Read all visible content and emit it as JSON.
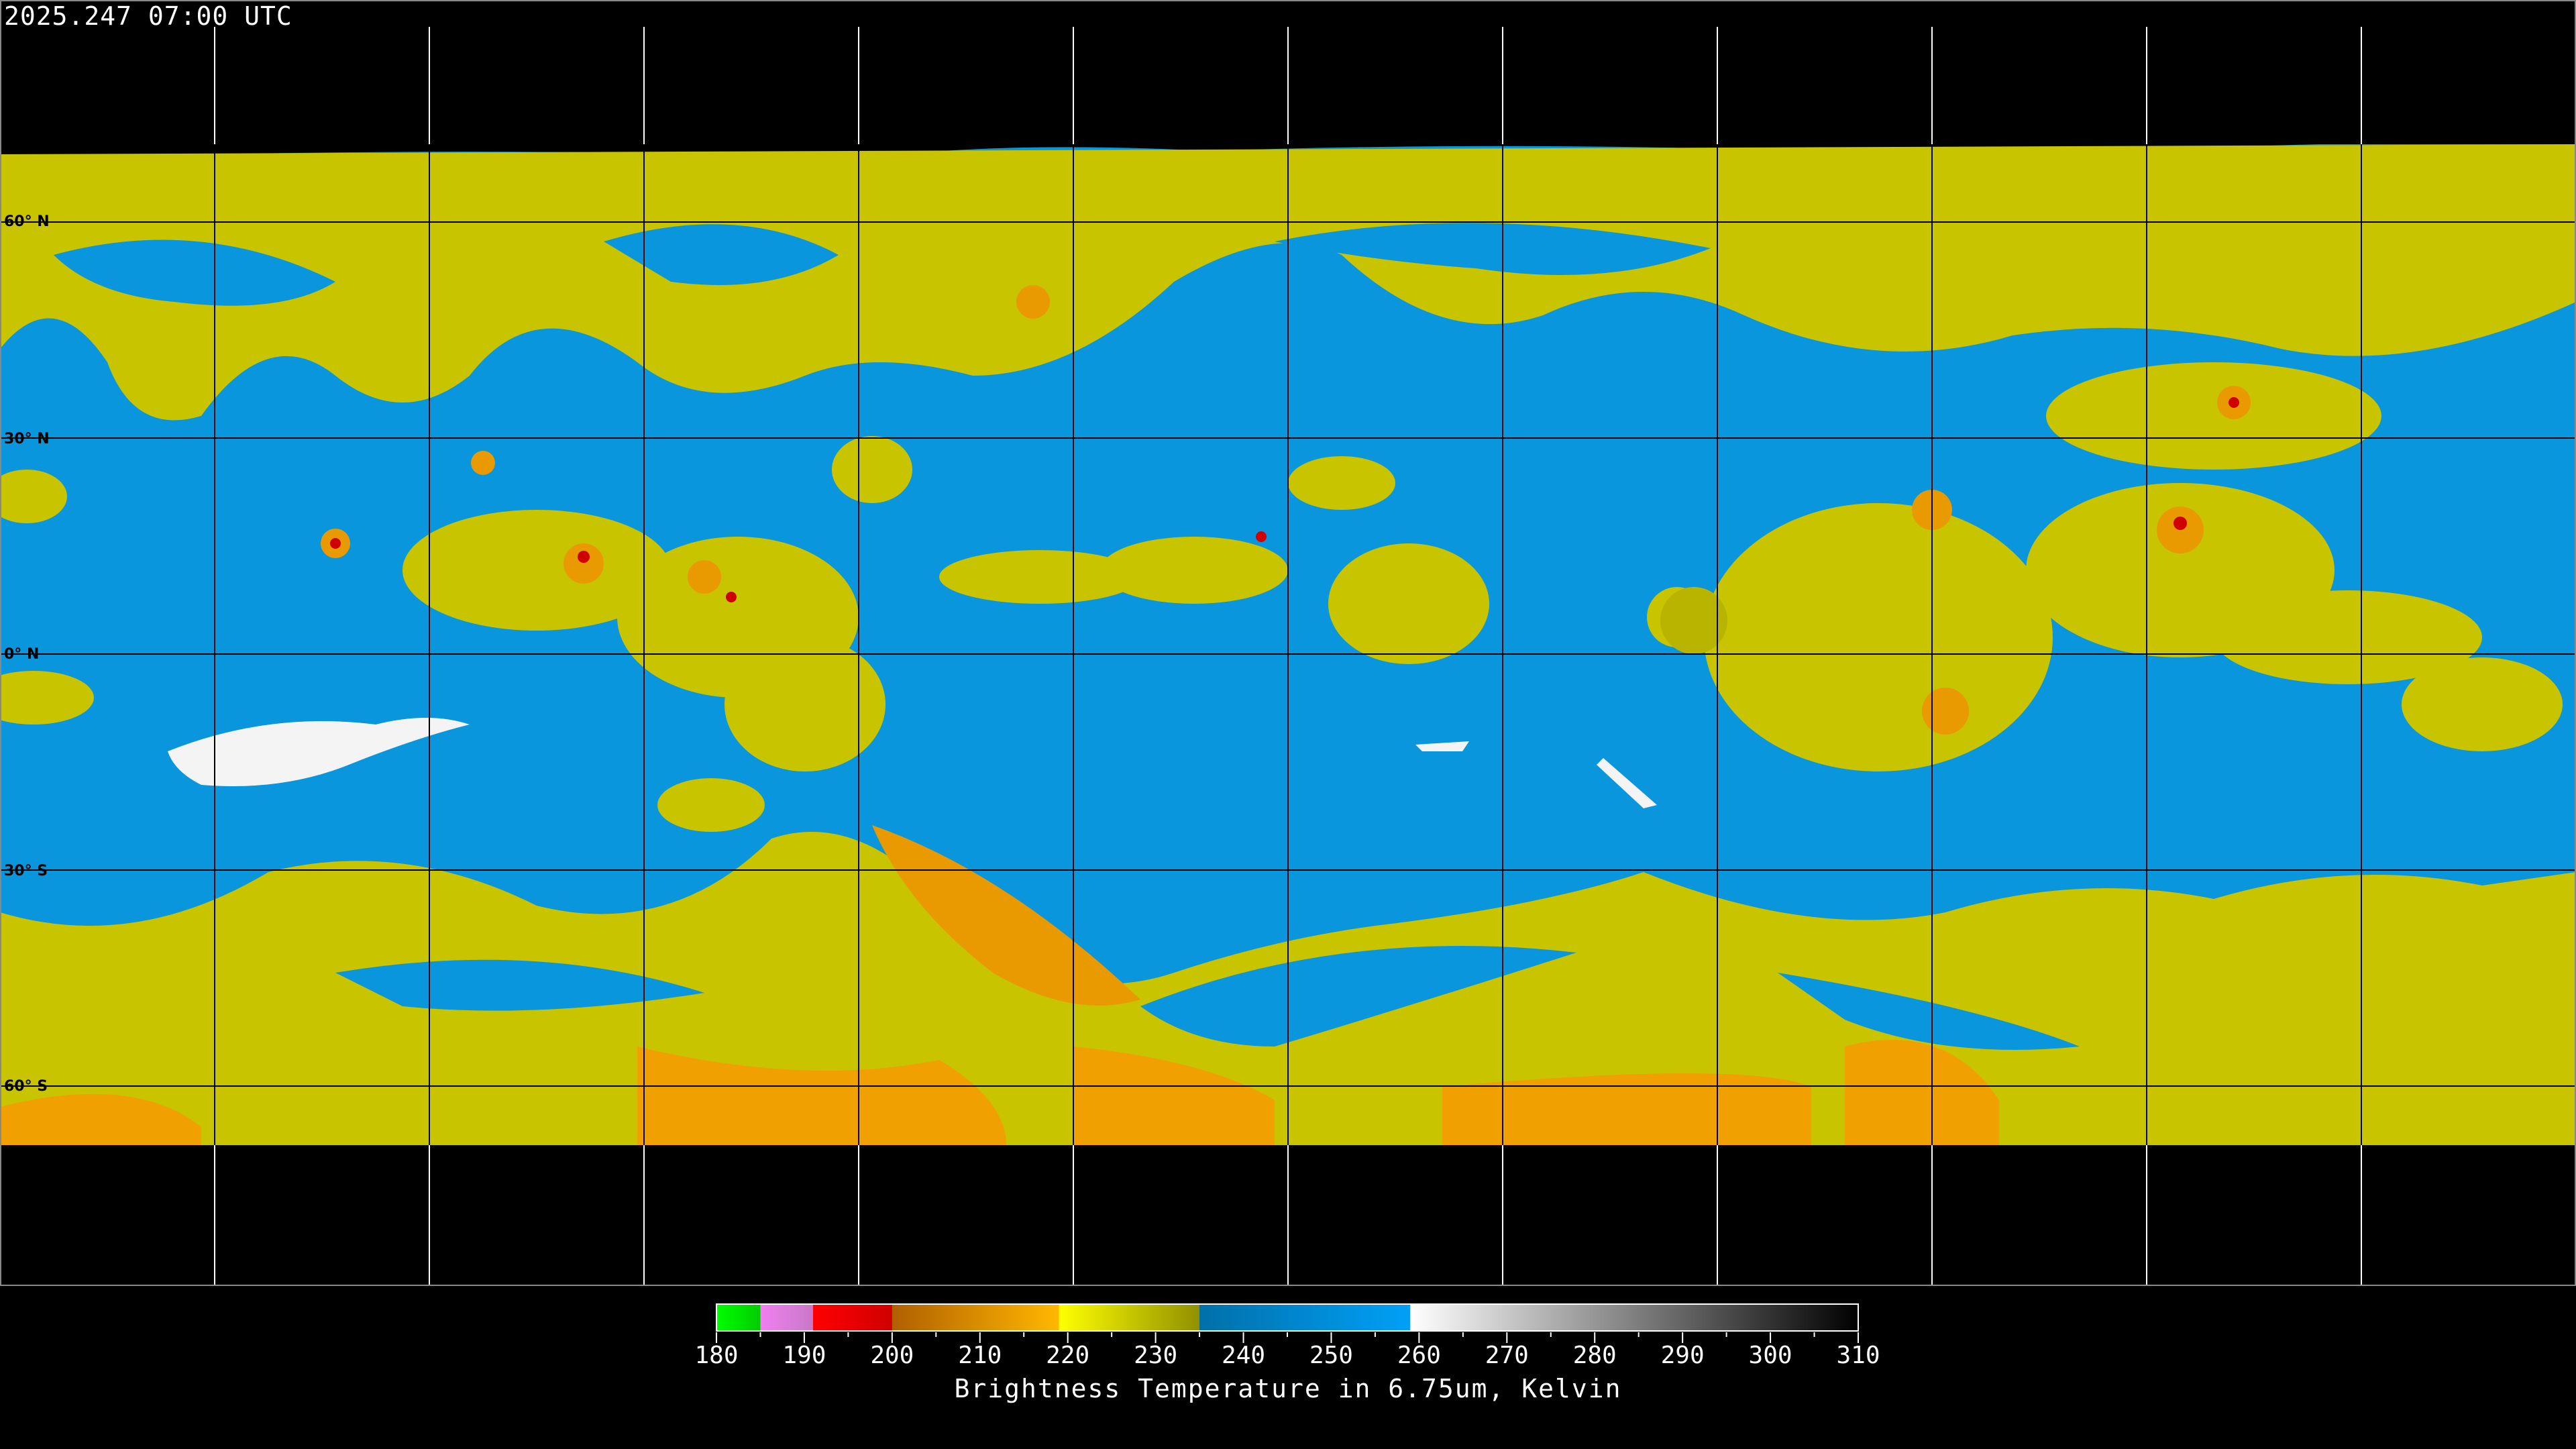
{
  "header": {
    "timestamp": "2025.247 07:00 UTC"
  },
  "map": {
    "projection": "equirectangular",
    "lat_labels": [
      "60° N",
      "30° N",
      "0° N",
      "30° S",
      "60° S"
    ],
    "gridline_spacing_deg": 30,
    "colors": {
      "background": "#000000",
      "gridline_over_image": "#000000",
      "gridline_over_background": "#ffffff"
    }
  },
  "colorbar": {
    "title": "Brightness Temperature in 6.75um, Kelvin",
    "range": [
      180,
      310
    ],
    "tick_labels": [
      "180",
      "190",
      "200",
      "210",
      "220",
      "230",
      "240",
      "250",
      "260",
      "270",
      "280",
      "290",
      "300",
      "310"
    ],
    "segments": [
      {
        "from": 180,
        "to": 185,
        "start": "#00ff00",
        "end": "#00cc00"
      },
      {
        "from": 185,
        "to": 191,
        "start": "#f080f0",
        "end": "#c878c8"
      },
      {
        "from": 191,
        "to": 200,
        "start": "#ff0000",
        "end": "#d00000"
      },
      {
        "from": 200,
        "to": 219,
        "start": "#b06000",
        "end": "#ffb800"
      },
      {
        "from": 219,
        "to": 235,
        "start": "#ffff00",
        "end": "#909000"
      },
      {
        "from": 235,
        "to": 259,
        "start": "#0070a8",
        "end": "#00a0f8"
      },
      {
        "from": 259,
        "to": 310,
        "start": "#ffffff",
        "end": "#000000"
      }
    ]
  }
}
